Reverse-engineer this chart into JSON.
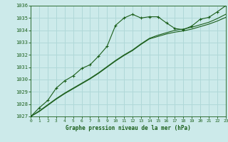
{
  "title": "Graphe pression niveau de la mer (hPa)",
  "bg_color": "#cceaea",
  "grid_color": "#b0d8d8",
  "line_color": "#1a5e1a",
  "marker_color": "#1a5e1a",
  "text_color": "#1a5e1a",
  "xlim": [
    0,
    23
  ],
  "ylim": [
    1027,
    1036
  ],
  "xticks": [
    0,
    1,
    2,
    3,
    4,
    5,
    6,
    7,
    8,
    9,
    10,
    11,
    12,
    13,
    14,
    15,
    16,
    17,
    18,
    19,
    20,
    21,
    22,
    23
  ],
  "yticks": [
    1027,
    1028,
    1029,
    1030,
    1031,
    1032,
    1033,
    1034,
    1035,
    1036
  ],
  "series1_x": [
    0,
    1,
    2,
    3,
    4,
    5,
    6,
    7,
    8,
    9,
    10,
    11,
    12,
    13,
    14,
    15,
    16,
    17,
    18,
    19,
    20,
    21,
    22,
    23
  ],
  "series1_y": [
    1027.0,
    1027.7,
    1028.3,
    1029.3,
    1029.9,
    1030.3,
    1030.9,
    1031.2,
    1031.9,
    1032.7,
    1034.4,
    1035.0,
    1035.3,
    1035.0,
    1035.1,
    1035.1,
    1034.6,
    1034.15,
    1034.05,
    1034.35,
    1034.9,
    1035.05,
    1035.5,
    1036.0
  ],
  "series2_x": [
    0,
    1,
    2,
    3,
    4,
    5,
    6,
    7,
    8,
    9,
    10,
    11,
    12,
    13,
    14,
    15,
    16,
    17,
    18,
    19,
    20,
    21,
    22,
    23
  ],
  "series2_y": [
    1027.0,
    1027.4,
    1027.9,
    1028.4,
    1028.85,
    1029.25,
    1029.65,
    1030.05,
    1030.5,
    1031.0,
    1031.5,
    1031.95,
    1032.35,
    1032.85,
    1033.3,
    1033.5,
    1033.7,
    1033.85,
    1033.95,
    1034.1,
    1034.3,
    1034.5,
    1034.75,
    1035.05
  ],
  "series3_x": [
    0,
    1,
    2,
    3,
    4,
    5,
    6,
    7,
    8,
    9,
    10,
    11,
    12,
    13,
    14,
    15,
    16,
    17,
    18,
    19,
    20,
    21,
    22,
    23
  ],
  "series3_y": [
    1027.0,
    1027.45,
    1027.95,
    1028.45,
    1028.9,
    1029.3,
    1029.7,
    1030.1,
    1030.55,
    1031.05,
    1031.55,
    1032.0,
    1032.4,
    1032.9,
    1033.35,
    1033.6,
    1033.8,
    1034.0,
    1034.1,
    1034.25,
    1034.45,
    1034.65,
    1034.95,
    1035.3
  ]
}
